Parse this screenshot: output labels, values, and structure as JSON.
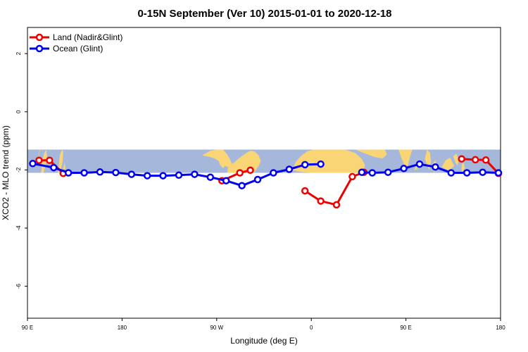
{
  "chart_data": {
    "type": "line",
    "title": "0-15N September (Ver 10)   2015-01-01 to 2020-12-18",
    "xlabel": "Longitude (deg E)",
    "ylabel": "XCO2 - MLO trend (ppm)",
    "xlim": [
      90,
      540
    ],
    "ylim": [
      -7.1,
      2.9
    ],
    "x_ticks": [
      {
        "value": 90,
        "label": "90 E"
      },
      {
        "value": 180,
        "label": "180"
      },
      {
        "value": 270,
        "label": "90 W"
      },
      {
        "value": 360,
        "label": "0"
      },
      {
        "value": 450,
        "label": "90 E"
      },
      {
        "value": 540,
        "label": "180"
      }
    ],
    "y_ticks": [
      {
        "value": 2,
        "label": "2"
      },
      {
        "value": 0,
        "label": "0"
      },
      {
        "value": -2,
        "label": "-2"
      },
      {
        "value": -4,
        "label": "-4"
      },
      {
        "value": -6,
        "label": "-6"
      }
    ],
    "grid": false,
    "legend_position": "top-left",
    "series": [
      {
        "name": "Land (Nadir&Glint)",
        "color": "#ee0000",
        "segments": [
          [
            [
              101,
              -1.67
            ],
            [
              111,
              -1.67
            ],
            [
              124,
              -2.12
            ]
          ],
          [
            [
              275,
              -2.37
            ],
            [
              292,
              -2.1
            ],
            [
              302,
              -2.01
            ]
          ],
          [
            [
              354,
              -2.72
            ],
            [
              369,
              -3.07
            ],
            [
              384,
              -3.2
            ],
            [
              399,
              -2.23
            ],
            [
              410,
              -2.08
            ]
          ],
          [
            [
              503,
              -1.62
            ],
            [
              516,
              -1.65
            ],
            [
              526,
              -1.66
            ],
            [
              538,
              -2.12
            ]
          ]
        ]
      },
      {
        "name": "Ocean (Glint)",
        "color": "#0000ee",
        "segments": [
          [
            [
              95,
              -1.78
            ],
            [
              115,
              -1.92
            ],
            [
              129,
              -2.1
            ],
            [
              144,
              -2.1
            ],
            [
              159,
              -2.07
            ],
            [
              174,
              -2.09
            ],
            [
              189,
              -2.15
            ],
            [
              204,
              -2.2
            ],
            [
              219,
              -2.2
            ],
            [
              234,
              -2.18
            ],
            [
              249,
              -2.15
            ],
            [
              264,
              -2.25
            ],
            [
              279,
              -2.37
            ],
            [
              294,
              -2.54
            ],
            [
              309,
              -2.33
            ],
            [
              324,
              -2.1
            ],
            [
              339,
              -1.98
            ],
            [
              354,
              -1.82
            ],
            [
              369,
              -1.8
            ]
          ],
          [
            [
              408,
              -2.08
            ],
            [
              418,
              -2.1
            ],
            [
              433,
              -2.08
            ],
            [
              448,
              -1.95
            ],
            [
              463,
              -1.8
            ],
            [
              478,
              -1.9
            ],
            [
              493,
              -2.1
            ],
            [
              508,
              -2.1
            ],
            [
              523,
              -2.08
            ],
            [
              538,
              -2.1
            ]
          ]
        ]
      }
    ]
  },
  "map": {
    "ocean_color": "#a5b8db",
    "land_color": "#f9d576",
    "lat_band": [
      -1.3,
      -2.1
    ]
  }
}
